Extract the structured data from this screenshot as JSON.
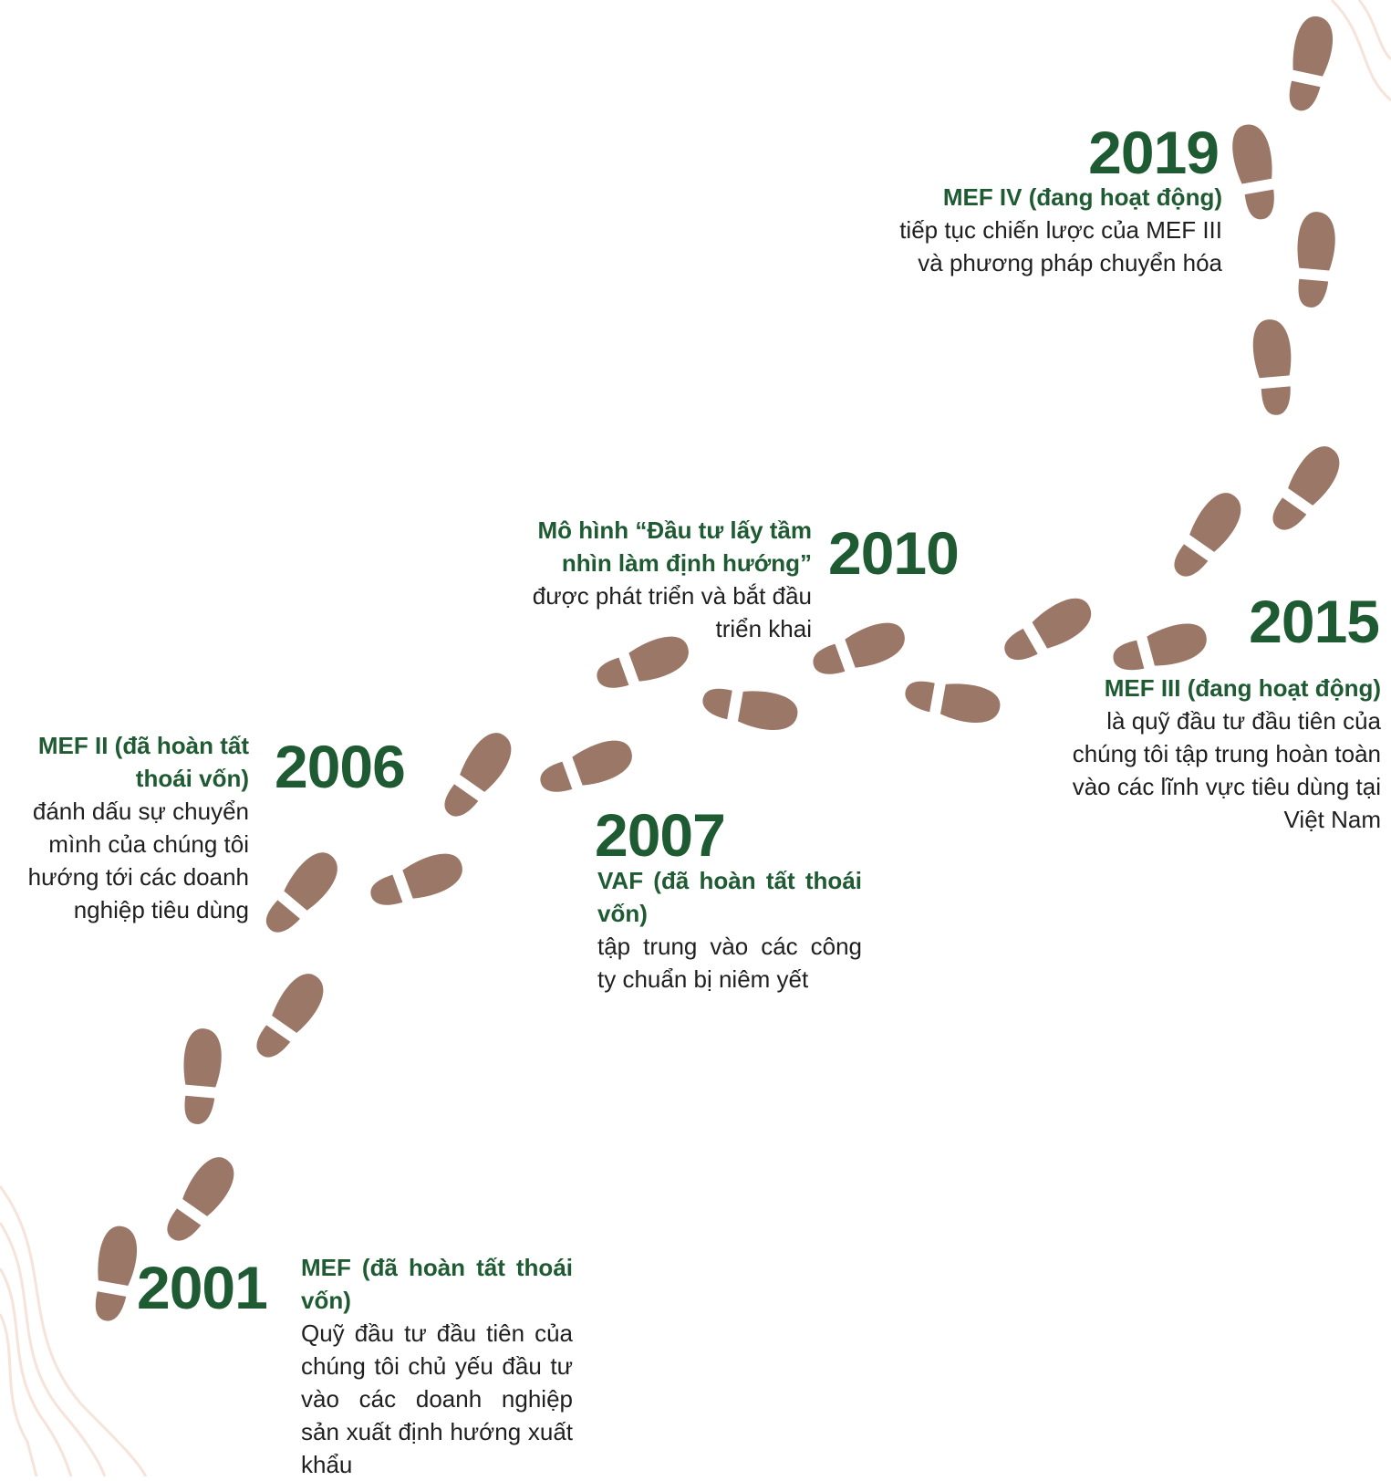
{
  "milestones": [
    {
      "year": "2019",
      "title": "MEF IV (đang hoạt động)",
      "description": "tiếp tục chiến lược của MEF III và phương pháp chuyển hóa"
    },
    {
      "year": "2010",
      "title": "Mô hình “Đầu tư lấy tầm nhìn làm định hướng”",
      "description": "được phát triển và bắt đầu triển khai"
    },
    {
      "year": "2015",
      "title": "MEF III (đang hoạt động)",
      "description": "là quỹ đầu tư đầu tiên của chúng tôi tập trung hoàn toàn vào các lĩnh vực tiêu dùng tại Việt Nam"
    },
    {
      "year": "2006",
      "title": "MEF II (đã hoàn tất thoái vốn)",
      "description": "đánh dấu sự chuyển mình của chúng tôi hướng tới các doanh nghiệp tiêu dùng"
    },
    {
      "year": "2007",
      "title": "VAF (đã hoàn tất thoái vốn)",
      "description": "tập trung vào các công ty chuẩn bị niêm yết"
    },
    {
      "year": "2001",
      "title": "MEF (đã hoàn tất thoái vốn)",
      "description": "Quỹ đầu tư đầu tiên của chúng tôi chủ yếu đầu tư vào các doanh nghiệp sản xuất định hướng xuất khẩu"
    }
  ]
}
